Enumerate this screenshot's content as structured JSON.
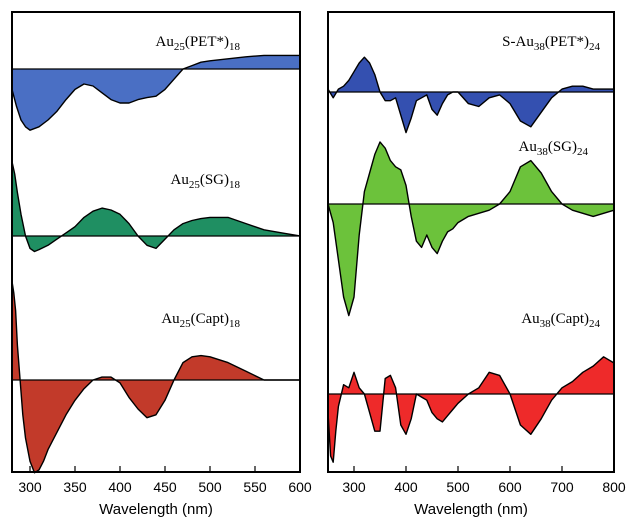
{
  "chart_data": [
    {
      "type": "area",
      "xlabel": "Wavelength (nm)",
      "ylabel": "",
      "xlim": [
        280,
        600
      ],
      "xticks": [
        300,
        350,
        400,
        450,
        500,
        550,
        600
      ],
      "grid": false,
      "series": [
        {
          "name": "Au25(PET*)18",
          "label_base": "Au",
          "label_parts": [
            [
              "Au",
              ""
            ],
            [
              "25",
              "sub"
            ],
            [
              "(PET*)",
              ""
            ],
            [
              "18",
              "sub"
            ]
          ],
          "color": "#4a6fc4",
          "x": [
            280,
            285,
            290,
            295,
            300,
            310,
            320,
            330,
            340,
            350,
            360,
            370,
            380,
            390,
            400,
            410,
            420,
            430,
            440,
            450,
            460,
            470,
            480,
            490,
            500,
            520,
            540,
            560,
            580,
            600
          ],
          "y": [
            -0.3,
            -0.55,
            -0.75,
            -0.85,
            -0.9,
            -0.85,
            -0.75,
            -0.62,
            -0.45,
            -0.3,
            -0.22,
            -0.25,
            -0.35,
            -0.45,
            -0.5,
            -0.5,
            -0.45,
            -0.42,
            -0.4,
            -0.3,
            -0.15,
            0.0,
            0.05,
            0.1,
            0.12,
            0.15,
            0.18,
            0.2,
            0.2,
            0.2
          ]
        },
        {
          "name": "Au25(SG)18",
          "label_parts": [
            [
              "Au",
              ""
            ],
            [
              "25",
              "sub"
            ],
            [
              "(SG)",
              ""
            ],
            [
              "18",
              "sub"
            ]
          ],
          "color": "#1f8f62",
          "x": [
            280,
            283,
            286,
            290,
            295,
            300,
            305,
            310,
            320,
            330,
            340,
            350,
            360,
            370,
            380,
            390,
            400,
            410,
            420,
            430,
            440,
            450,
            460,
            470,
            480,
            490,
            500,
            520,
            540,
            560,
            580,
            600
          ],
          "y": [
            1.2,
            1.0,
            0.7,
            0.35,
            0.0,
            -0.2,
            -0.25,
            -0.22,
            -0.15,
            -0.05,
            0.05,
            0.15,
            0.3,
            0.4,
            0.45,
            0.42,
            0.35,
            0.2,
            0.0,
            -0.15,
            -0.2,
            -0.05,
            0.1,
            0.2,
            0.25,
            0.28,
            0.3,
            0.3,
            0.2,
            0.1,
            0.05,
            0.0
          ]
        },
        {
          "name": "Au25(Capt)18",
          "label_parts": [
            [
              "Au",
              ""
            ],
            [
              "25",
              "sub"
            ],
            [
              "(Capt)",
              ""
            ],
            [
              "18",
              "sub"
            ]
          ],
          "color": "#c23a2a",
          "x": [
            280,
            282,
            284,
            286,
            288,
            290,
            292,
            295,
            300,
            305,
            310,
            315,
            320,
            330,
            340,
            350,
            360,
            370,
            380,
            390,
            400,
            410,
            420,
            430,
            440,
            450,
            460,
            470,
            480,
            490,
            500,
            520,
            540,
            560,
            580,
            600
          ],
          "y": [
            1.7,
            1.5,
            1.2,
            0.6,
            0.2,
            -0.2,
            -0.6,
            -1.0,
            -1.4,
            -1.6,
            -1.55,
            -1.4,
            -1.2,
            -0.9,
            -0.6,
            -0.35,
            -0.15,
            0.0,
            0.05,
            0.05,
            -0.05,
            -0.3,
            -0.5,
            -0.65,
            -0.6,
            -0.35,
            0.0,
            0.3,
            0.4,
            0.42,
            0.4,
            0.3,
            0.15,
            0.0,
            0.0,
            0.0
          ]
        }
      ]
    },
    {
      "type": "area",
      "xlabel": "Wavelength (nm)",
      "ylabel": "",
      "xlim": [
        250,
        800
      ],
      "xticks": [
        300,
        400,
        500,
        600,
        700,
        800
      ],
      "grid": false,
      "series": [
        {
          "name": "S-Au38(PET*)24",
          "label_parts": [
            [
              "S-Au",
              ""
            ],
            [
              "38",
              "sub"
            ],
            [
              "(PET*)",
              ""
            ],
            [
              "24",
              "sub"
            ]
          ],
          "color": "#3450b0",
          "x": [
            250,
            260,
            270,
            280,
            290,
            300,
            310,
            320,
            330,
            340,
            350,
            360,
            370,
            380,
            390,
            400,
            410,
            420,
            430,
            440,
            450,
            460,
            470,
            480,
            490,
            500,
            520,
            540,
            560,
            580,
            600,
            620,
            640,
            660,
            680,
            700,
            720,
            740,
            760,
            780,
            800
          ],
          "y": [
            0.05,
            -0.1,
            0.05,
            0.1,
            0.2,
            0.35,
            0.5,
            0.6,
            0.5,
            0.3,
            0.0,
            -0.15,
            -0.15,
            -0.1,
            -0.4,
            -0.7,
            -0.45,
            -0.15,
            -0.1,
            -0.05,
            -0.3,
            -0.4,
            -0.2,
            -0.05,
            0.0,
            0.0,
            -0.2,
            -0.25,
            -0.1,
            -0.05,
            -0.2,
            -0.5,
            -0.6,
            -0.35,
            -0.1,
            0.05,
            0.1,
            0.1,
            0.05,
            0.05,
            0.05
          ]
        },
        {
          "name": "Au38(SG)24",
          "label_parts": [
            [
              "Au",
              ""
            ],
            [
              "38",
              "sub"
            ],
            [
              "(SG)",
              ""
            ],
            [
              "24",
              "sub"
            ]
          ],
          "color": "#6cc23b",
          "x": [
            250,
            260,
            270,
            280,
            290,
            300,
            310,
            320,
            330,
            340,
            350,
            360,
            370,
            380,
            390,
            400,
            410,
            420,
            430,
            440,
            450,
            460,
            470,
            480,
            490,
            500,
            520,
            540,
            560,
            580,
            600,
            620,
            640,
            660,
            680,
            700,
            720,
            740,
            760,
            780,
            800
          ],
          "y": [
            0.0,
            -0.3,
            -0.9,
            -1.5,
            -1.8,
            -1.5,
            -0.5,
            0.2,
            0.5,
            0.8,
            1.0,
            0.9,
            0.7,
            0.6,
            0.55,
            0.3,
            -0.2,
            -0.6,
            -0.7,
            -0.5,
            -0.7,
            -0.8,
            -0.6,
            -0.45,
            -0.4,
            -0.3,
            -0.2,
            -0.15,
            -0.1,
            0.0,
            0.2,
            0.6,
            0.7,
            0.5,
            0.2,
            0.0,
            -0.1,
            -0.15,
            -0.2,
            -0.15,
            -0.1
          ]
        },
        {
          "name": "Au38(Capt)24",
          "label_parts": [
            [
              "Au",
              ""
            ],
            [
              "38",
              "sub"
            ],
            [
              "(Capt)",
              ""
            ],
            [
              "24",
              "sub"
            ]
          ],
          "color": "#ee2a2a",
          "x": [
            250,
            255,
            260,
            265,
            270,
            280,
            290,
            300,
            310,
            320,
            330,
            340,
            350,
            360,
            370,
            380,
            390,
            400,
            410,
            420,
            430,
            440,
            450,
            460,
            470,
            480,
            490,
            500,
            520,
            540,
            560,
            580,
            600,
            620,
            640,
            660,
            680,
            700,
            720,
            740,
            760,
            780,
            800
          ],
          "y": [
            -0.3,
            -1.0,
            -1.1,
            -0.6,
            -0.2,
            0.15,
            0.1,
            0.35,
            0.1,
            0.0,
            -0.3,
            -0.6,
            -0.6,
            0.25,
            0.3,
            0.1,
            -0.5,
            -0.65,
            -0.4,
            0.0,
            -0.05,
            -0.1,
            -0.3,
            -0.4,
            -0.45,
            -0.35,
            -0.25,
            -0.15,
            0.0,
            0.1,
            0.35,
            0.3,
            0.0,
            -0.5,
            -0.65,
            -0.4,
            -0.1,
            0.1,
            0.2,
            0.35,
            0.45,
            0.6,
            0.5
          ]
        }
      ]
    }
  ]
}
